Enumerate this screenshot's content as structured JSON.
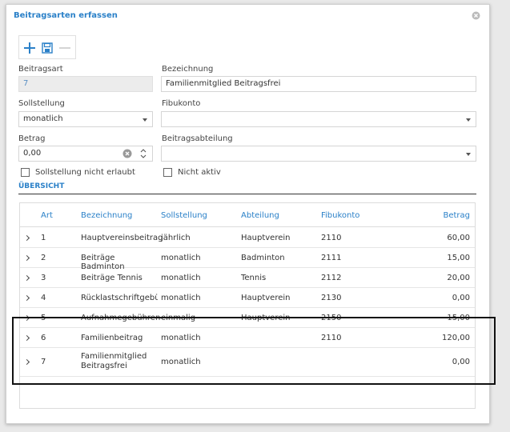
{
  "dialog": {
    "title": "Beitragsarten erfassen"
  },
  "icons": {
    "close": "close-circle-icon",
    "add": "plus-icon",
    "save": "floppy-disk-icon",
    "remove": "minus-icon"
  },
  "form": {
    "beitragsart": {
      "label": "Beitragsart",
      "value": "7"
    },
    "bezeichnung": {
      "label": "Bezeichnung",
      "value": "Familienmitglied Beitragsfrei"
    },
    "sollstellung": {
      "label": "Sollstellung",
      "value": "monatlich"
    },
    "fibukonto": {
      "label": "Fibukonto",
      "value": ""
    },
    "betrag": {
      "label": "Betrag",
      "value": "0,00"
    },
    "beitragsabteilung": {
      "label": "Beitragsabteilung",
      "value": ""
    },
    "check_sollstellung": {
      "label": "Sollstellung nicht erlaubt",
      "checked": false
    },
    "check_nicht_aktiv": {
      "label": "Nicht aktiv",
      "checked": false
    }
  },
  "overview": {
    "title": "ÜBERSICHT",
    "columns": [
      "Art",
      "Bezeichnung",
      "Sollstellung",
      "Abteilung",
      "Fibukonto",
      "Betrag"
    ],
    "rows": [
      [
        "1",
        "Hauptvereinsbeitrag",
        "jährlich",
        "Hauptverein",
        "2110",
        "60,00"
      ],
      [
        "2",
        "Beiträge Badminton",
        "monatlich",
        "Badminton",
        "2111",
        "15,00"
      ],
      [
        "3",
        "Beiträge Tennis",
        "monatlich",
        "Tennis",
        "2112",
        "20,00"
      ],
      [
        "4",
        "Rücklastschriftgebühr",
        "monatlich",
        "Hauptverein",
        "2130",
        "0,00"
      ],
      [
        "5",
        "Aufnahmegebühren",
        "einmalig",
        "Hauptverein",
        "2150",
        "15,00"
      ],
      [
        "6",
        "Familienbeitrag",
        "monatlich",
        "",
        "2110",
        "120,00"
      ],
      [
        "7",
        "Familienmitglied Beitragsfrei",
        "monatlich",
        "",
        "",
        "0,00"
      ]
    ]
  },
  "colors": {
    "accent": "#2a80c8",
    "highlight": "#111111"
  }
}
